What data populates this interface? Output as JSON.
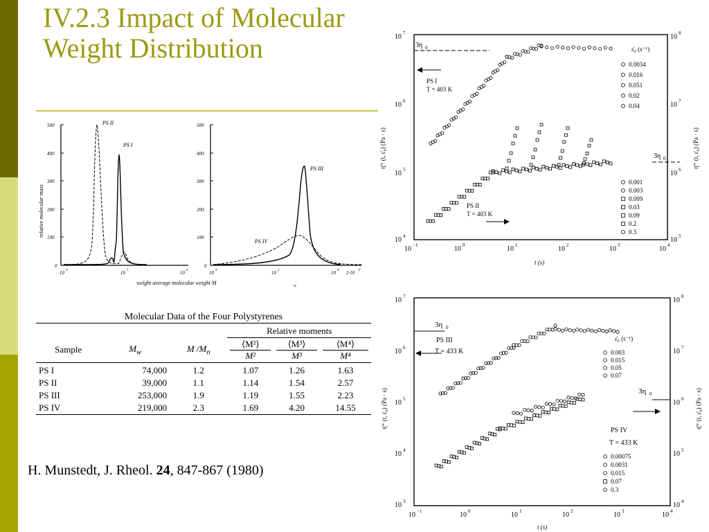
{
  "slide": {
    "title_line1": "IV.2.3 Impact of Molecular",
    "title_line2": "Weight Distribution",
    "citation_prefix": "H. Munstedt, J. Rheol. ",
    "citation_volume": "24",
    "citation_suffix": ", 847-867 (1980)"
  },
  "colors": {
    "title": "#9a9a10",
    "bar_dark": "#6b6b00",
    "bar_light": "#d6dc7c",
    "bar_mid": "#a3a500",
    "rule": "#c8c040"
  },
  "mwd_plot": {
    "ylabel": "relative  molecular  mass",
    "xlabel": "weight   average   molecular   weight   M",
    "xlabel_sub": "w",
    "left_yticks": [
      "500",
      "400",
      "300",
      "200",
      "100",
      "0"
    ],
    "right_yticks": [
      "500",
      "400",
      "300",
      "200",
      "100",
      "0"
    ],
    "left_xticks": [
      "10",
      "4",
      "10",
      "5",
      "10",
      "6"
    ],
    "right_xticks": [
      "10",
      "4",
      "10",
      "5",
      "10",
      "6",
      "2·10",
      "6"
    ],
    "label_ps1": "PS I",
    "label_ps2": "PS II",
    "label_ps3": "PS III",
    "label_ps4": "PS IV"
  },
  "table": {
    "title": "Molecular Data of the Four Polystyrenes",
    "group_header": "Relative moments",
    "headers": [
      "Sample",
      "M",
      "M /M",
      "⟨M²⟩",
      "⟨M³⟩",
      "⟨M⁴⟩"
    ],
    "header_w": "w",
    "header_n": "n",
    "denoms": [
      "M²",
      "M³",
      "M⁴"
    ],
    "rows": [
      [
        "PS I",
        "74,000",
        "1.2",
        "1.07",
        "1.26",
        "1.63"
      ],
      [
        "PS II",
        "39,000",
        "1.1",
        "1.14",
        "1.54",
        "2.57"
      ],
      [
        "PS III",
        "253,000",
        "1.9",
        "1.19",
        "1.55",
        "2.23"
      ],
      [
        "PS IV",
        "219,000",
        "2.3",
        "1.69",
        "4.20",
        "14.55"
      ]
    ]
  },
  "top_plot": {
    "yleft": [
      "10",
      "7",
      "10",
      "6",
      "10",
      "5",
      "10",
      "4"
    ],
    "yright": [
      "10",
      "8",
      "10",
      "7",
      "10",
      "6",
      "10",
      "5"
    ],
    "xticks": [
      "10",
      "−1",
      "10",
      "0",
      "10",
      "1",
      "10",
      "2",
      "10",
      "3",
      "10",
      "4"
    ],
    "xlabel": "t (s)",
    "ylabel_left": "η̄⁺ (t, ε̇₀)  (Pa · s)",
    "ylabel_right": "η̄⁺ (t, ε̇₀)  (Pa · s)",
    "three_eta": "3η",
    "eta_sub": "0",
    "ps1_label": "PS I",
    "ps1_T": "T = 403 K",
    "ps2_label": "PS II",
    "ps2_T": "T = 403 K",
    "legend1_title": "ε̇₀ (s⁻¹)",
    "legend1": [
      "0.0034",
      "0.016",
      "0.051",
      "0.02",
      "0.04"
    ],
    "legend2": [
      "0.001",
      "0.003",
      "0.009",
      "0.03",
      "0.09",
      "0.2",
      "0.3"
    ]
  },
  "bottom_plot": {
    "yleft": [
      "10",
      "7",
      "10",
      "6",
      "10",
      "5",
      "10",
      "4",
      "10",
      "3"
    ],
    "yright": [
      "10",
      "8",
      "10",
      "7",
      "10",
      "6",
      "10",
      "5",
      "10",
      "4"
    ],
    "xticks": [
      "10",
      "−1",
      "10",
      "0",
      "10",
      "1",
      "10",
      "2",
      "10",
      "3",
      "10",
      "4"
    ],
    "xlabel": "t (s)",
    "ylabel_left": "η̄⁺ (t, ε̇₀)  (Pa · s)",
    "ylabel_right": "η̄⁺ (t, ε̇₀)  (Pa · s)",
    "three_eta": "3η",
    "eta_sub": "0",
    "ps3_label": "PS III",
    "ps3_T": "T = 433 K",
    "ps4_label": "PS IV",
    "ps4_T": "T = 433 K",
    "legend1_title": "ε̇₀ (s⁻¹)",
    "legend1": [
      "0.003",
      "0.015",
      "0.05",
      "0.07"
    ],
    "legend2": [
      "0.00075",
      "0.0031",
      "0.015",
      "0.07",
      "0.3"
    ]
  }
}
